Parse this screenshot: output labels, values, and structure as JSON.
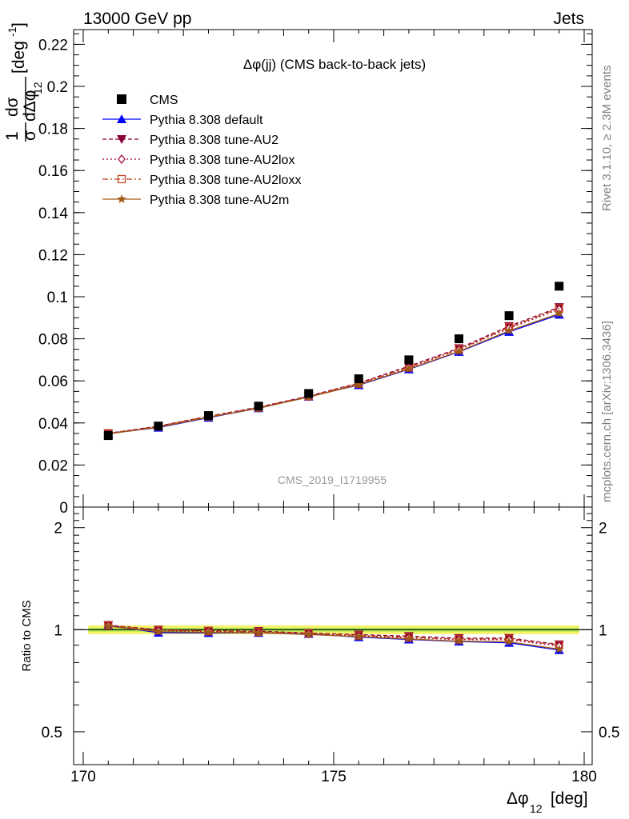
{
  "header": {
    "energy_label": "13000 GeV pp",
    "process_label": "Jets"
  },
  "side_labels": {
    "rivet": "Rivet 3.1.10, ≥ 2.3M events",
    "mcplots": "mcplots.cern.ch [arXiv:1306.3436]"
  },
  "chart_data": {
    "type": "line",
    "title": "Δφ(jj) (CMS back-to-back jets)",
    "analysis_id": "CMS_2019_I1719955",
    "xlabel": "Δφ",
    "xlabel_sub": "12",
    "xlabel_unit": " [deg]",
    "ylabel_main": "1 dσ / σ dΔφ_12 [deg^-1]",
    "ratio_ylabel": "Ratio to CMS",
    "xlim": [
      170,
      180
    ],
    "ylim": [
      0,
      0.227
    ],
    "ratio_ylim": [
      0.4,
      2.3
    ],
    "xticks": [
      "170",
      "175",
      "180"
    ],
    "yticks": [
      "0",
      "0.02",
      "0.04",
      "0.06",
      "0.08",
      "0.1",
      "0.12",
      "0.14",
      "0.16",
      "0.18",
      "0.2",
      "0.22"
    ],
    "ratio_yticks": [
      "0.5",
      "1",
      "2"
    ],
    "x": [
      170.5,
      171.5,
      172.5,
      173.5,
      174.5,
      175.5,
      176.5,
      177.5,
      178.5,
      179.5
    ],
    "data": {
      "name": "CMS",
      "values": [
        0.034,
        0.0385,
        0.0435,
        0.048,
        0.054,
        0.061,
        0.07,
        0.08,
        0.091,
        0.105
      ]
    },
    "series": [
      {
        "name": "Pythia 8.308 default",
        "color": "#0000ff",
        "dash": "",
        "values": [
          0.035,
          0.0378,
          0.0425,
          0.047,
          0.0525,
          0.058,
          0.0655,
          0.0738,
          0.0833,
          0.0915
        ],
        "ratio": [
          1.03,
          0.98,
          0.978,
          0.979,
          0.972,
          0.951,
          0.936,
          0.923,
          0.915,
          0.871
        ]
      },
      {
        "name": "Pythia 8.308 tune-AU2",
        "color": "#8b0038",
        "dash": "5,3",
        "values": [
          0.0351,
          0.0385,
          0.0432,
          0.0475,
          0.0528,
          0.059,
          0.067,
          0.0755,
          0.086,
          0.095
        ],
        "ratio": [
          1.032,
          1.0,
          0.993,
          0.99,
          0.978,
          0.967,
          0.957,
          0.944,
          0.945,
          0.905
        ]
      },
      {
        "name": "Pythia 8.308 tune-AU2lox",
        "color": "#a0002a",
        "dash": "2,3",
        "values": [
          0.035,
          0.0383,
          0.043,
          0.0472,
          0.0526,
          0.0585,
          0.0663,
          0.0748,
          0.085,
          0.094
        ],
        "ratio": [
          1.03,
          0.995,
          0.988,
          0.983,
          0.974,
          0.959,
          0.947,
          0.935,
          0.934,
          0.895
        ]
      },
      {
        "name": "Pythia 8.308 tune-AU2loxx",
        "color": "#c03c1e",
        "dash": "7,3,2,3",
        "values": [
          0.035,
          0.0384,
          0.0431,
          0.0473,
          0.0527,
          0.0587,
          0.0665,
          0.075,
          0.0855,
          0.0945
        ],
        "ratio": [
          1.03,
          0.997,
          0.991,
          0.985,
          0.976,
          0.962,
          0.95,
          0.938,
          0.94,
          0.9
        ]
      },
      {
        "name": "Pythia 8.308 tune-AU2m",
        "color": "#a05a14",
        "dash": "",
        "values": [
          0.0348,
          0.038,
          0.0427,
          0.047,
          0.0523,
          0.0582,
          0.0657,
          0.074,
          0.0838,
          0.092
        ],
        "ratio": [
          1.024,
          0.987,
          0.982,
          0.979,
          0.968,
          0.954,
          0.939,
          0.925,
          0.921,
          0.876
        ]
      }
    ],
    "legend_position": "top-left"
  }
}
